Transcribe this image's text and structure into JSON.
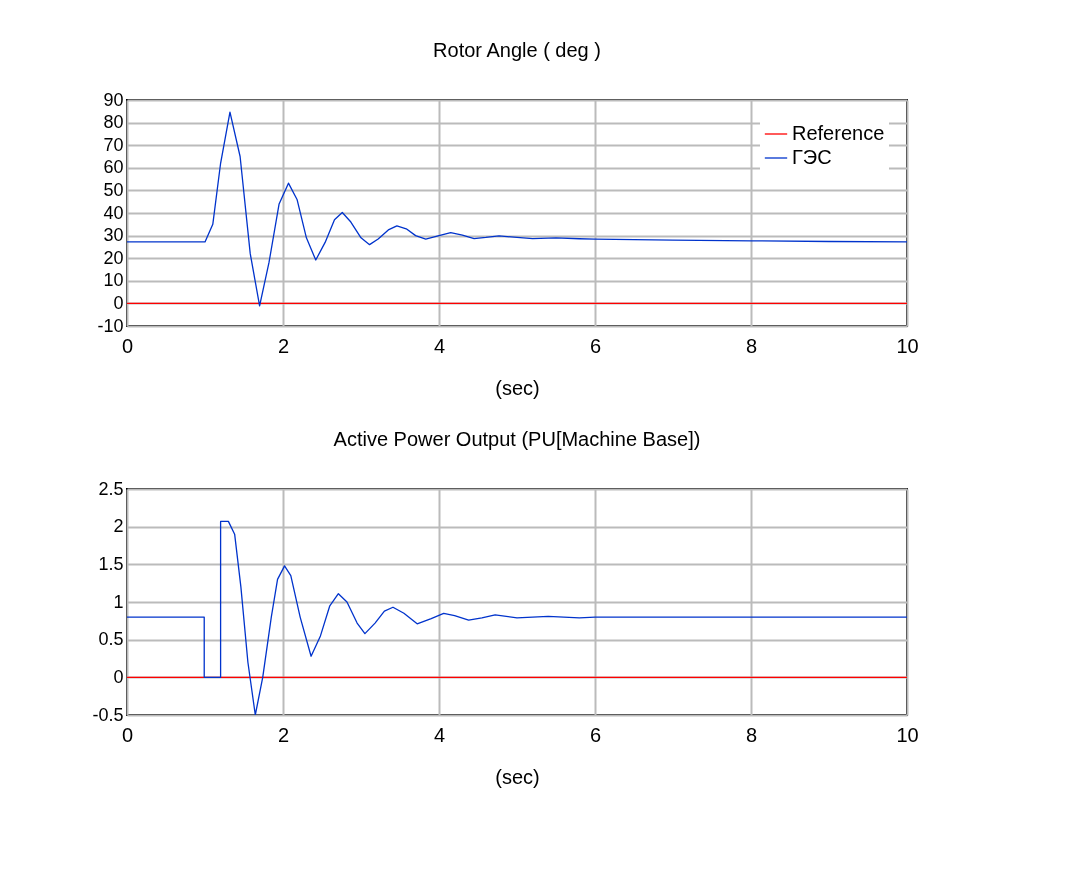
{
  "chart_data": [
    {
      "type": "line",
      "title": "Rotor Angle ( deg )",
      "xlabel": "(sec)",
      "xlim": [
        0,
        10
      ],
      "xticks": [
        0,
        2,
        4,
        6,
        8,
        10
      ],
      "ylim": [
        -10,
        90
      ],
      "yticks": [
        -10,
        0,
        10,
        20,
        30,
        40,
        50,
        60,
        70,
        80,
        90
      ],
      "grid": true,
      "legend": "top right",
      "series": [
        {
          "name": "Reference",
          "color": "#ff0000",
          "x": [
            0,
            10
          ],
          "values": [
            0,
            0
          ]
        },
        {
          "name": "ГЭС",
          "color": "#0033cc",
          "x": [
            0,
            1.0,
            1.1,
            1.2,
            1.32,
            1.45,
            1.58,
            1.7,
            1.82,
            1.95,
            2.07,
            2.18,
            2.3,
            2.42,
            2.54,
            2.66,
            2.76,
            2.87,
            3.0,
            3.11,
            3.22,
            3.35,
            3.46,
            3.58,
            3.7,
            3.83,
            4.0,
            4.15,
            4.3,
            4.45,
            4.6,
            4.77,
            5.0,
            5.2,
            5.5,
            5.8,
            6,
            7,
            8,
            9,
            10
          ],
          "values": [
            27.2,
            27.2,
            35,
            62,
            84.6,
            65,
            22,
            -1.1,
            18,
            44,
            53.2,
            46,
            29,
            19.2,
            27,
            37,
            40.2,
            36,
            29,
            26,
            28.5,
            32.5,
            34.3,
            33,
            30,
            28.4,
            30,
            31.3,
            30.2,
            28.7,
            29.2,
            29.9,
            29.2,
            28.7,
            29,
            28.6,
            28.4,
            28,
            27.7,
            27.4,
            27.2
          ]
        }
      ]
    },
    {
      "type": "line",
      "title": "Active Power Output (PU[Machine Base])",
      "xlabel": "(sec)",
      "xlim": [
        0,
        10
      ],
      "xticks": [
        0,
        2,
        4,
        6,
        8,
        10
      ],
      "ylim": [
        -0.5,
        2.5
      ],
      "yticks": [
        -0.5,
        0,
        0.5,
        1,
        1.5,
        2,
        2.5
      ],
      "grid": true,
      "legend": "top right",
      "series": [
        {
          "color": "#ff0000",
          "x": [
            0,
            10
          ],
          "values": [
            0,
            0
          ]
        },
        {
          "name": "ГЭС",
          "color": "#0033cc",
          "x": [
            0,
            0.99,
            0.99,
            1.2,
            1.2,
            1.3,
            1.38,
            1.46,
            1.55,
            1.645,
            1.74,
            1.85,
            1.93,
            2.02,
            2.1,
            2.22,
            2.36,
            2.48,
            2.6,
            2.71,
            2.82,
            2.95,
            3.05,
            3.18,
            3.3,
            3.41,
            3.55,
            3.72,
            3.9,
            4.06,
            4.2,
            4.38,
            4.55,
            4.72,
            5.0,
            5.4,
            5.8,
            6,
            8,
            10
          ],
          "values": [
            0.8,
            0.8,
            0,
            0,
            2.07,
            2.07,
            1.9,
            1.2,
            0.2,
            -0.5,
            0.0,
            0.8,
            1.3,
            1.48,
            1.35,
            0.8,
            0.28,
            0.55,
            0.95,
            1.11,
            1.0,
            0.72,
            0.58,
            0.72,
            0.88,
            0.93,
            0.85,
            0.71,
            0.78,
            0.85,
            0.82,
            0.76,
            0.79,
            0.83,
            0.79,
            0.81,
            0.79,
            0.8,
            0.8,
            0.8
          ]
        }
      ]
    }
  ]
}
